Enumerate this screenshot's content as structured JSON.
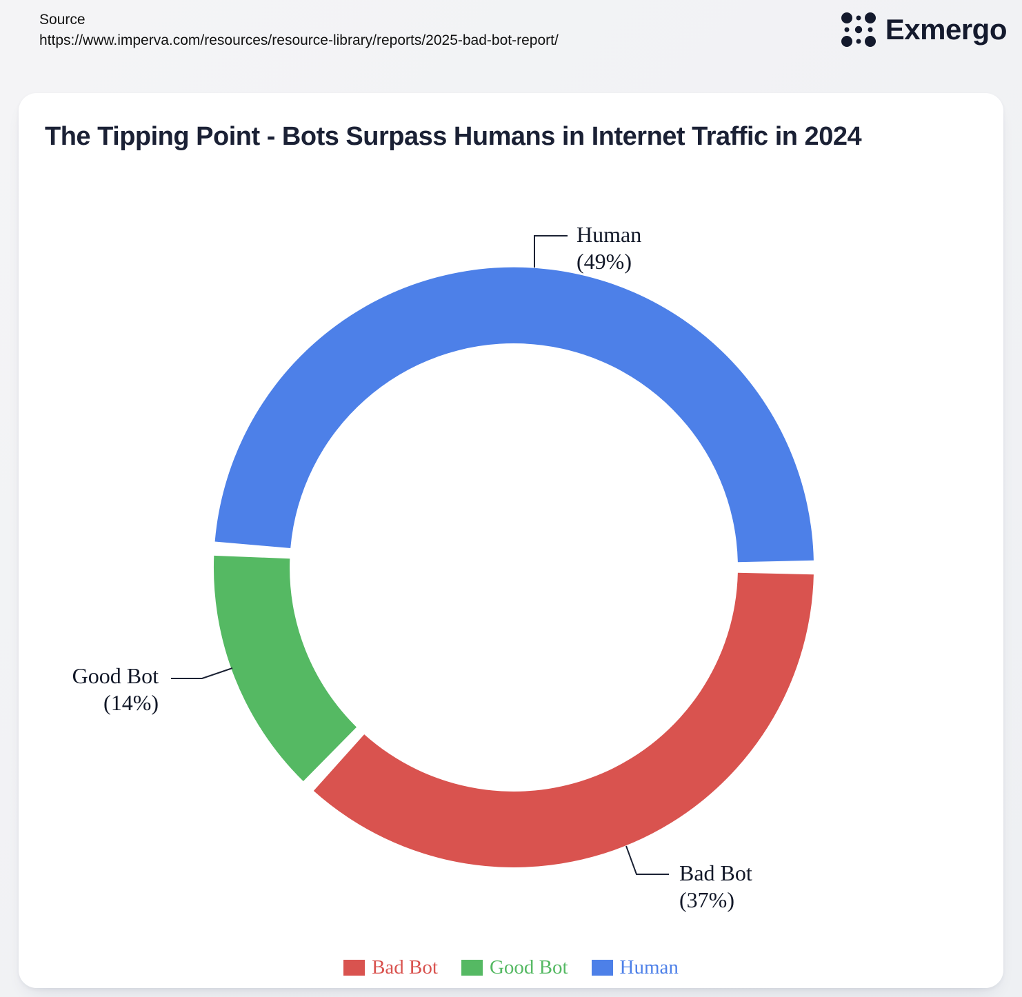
{
  "header": {
    "source_label": "Source",
    "source_url": "https://www.imperva.com/resources/resource-library/reports/2025-bad-bot-report/",
    "brand": "Exmergo"
  },
  "colors": {
    "bad_bot": "#d9534f",
    "good_bot": "#55b963",
    "human": "#4d80e8",
    "title_text": "#1b2135",
    "callout_text": "#121828",
    "leader_line": "#1a2133",
    "card_bg": "#ffffff",
    "page_bg": "#f0f1f4"
  },
  "chart_data": {
    "type": "pie",
    "subtype": "donut",
    "title": "The Tipping Point - Bots Surpass Humans in Internet Traffic in 2024",
    "categories": [
      "Bad Bot",
      "Good Bot",
      "Human"
    ],
    "values": [
      37,
      14,
      49
    ],
    "unit": "%",
    "colors": [
      "#d9534f",
      "#55b963",
      "#4d80e8"
    ],
    "start_angle_deg_clockwise_from_top": 90,
    "pad_angle_deg": 2.7,
    "legend_position": "bottom",
    "slices": [
      {
        "label": "Bad Bot",
        "value": 37,
        "pct_text": "(37%)",
        "color": "#d9534f"
      },
      {
        "label": "Good Bot",
        "value": 14,
        "pct_text": "(14%)",
        "color": "#55b963"
      },
      {
        "label": "Human",
        "value": 49,
        "pct_text": "(49%)",
        "color": "#4d80e8"
      }
    ],
    "legend": [
      {
        "label": "Bad Bot",
        "color": "#d9534f"
      },
      {
        "label": "Good Bot",
        "color": "#55b963"
      },
      {
        "label": "Human",
        "color": "#4d80e8"
      }
    ]
  }
}
